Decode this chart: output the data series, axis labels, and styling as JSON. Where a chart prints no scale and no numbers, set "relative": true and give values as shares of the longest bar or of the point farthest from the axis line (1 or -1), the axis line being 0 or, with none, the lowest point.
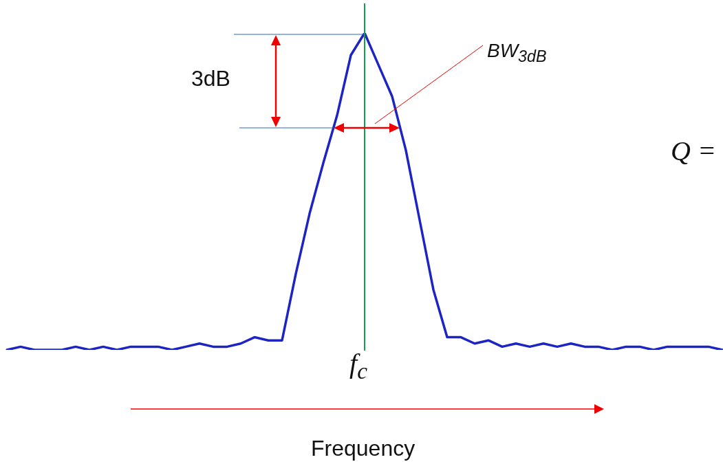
{
  "chart_data": {
    "type": "line",
    "relative": true,
    "xlabel": "Frequency",
    "marker": "none",
    "line_style": "solid",
    "legend": false,
    "grid": false,
    "categories": [
      null,
      null,
      null,
      null,
      null,
      null,
      null,
      null,
      null,
      null,
      null,
      null,
      null,
      null,
      null,
      null,
      null,
      null,
      null,
      null,
      null,
      null,
      null,
      null,
      null,
      null,
      null,
      null,
      null,
      null,
      null,
      null,
      null,
      null,
      null,
      null,
      null,
      null,
      null,
      null,
      null,
      null,
      null,
      null,
      null,
      null,
      null,
      null,
      null,
      null,
      null,
      null,
      null
    ],
    "series": [
      {
        "color": "#1c24c4",
        "values": [
          0.0,
          0.01,
          0.0,
          0.0,
          0.0,
          0.01,
          0.0,
          0.01,
          0,
          0.01,
          0.01,
          0.01,
          0.0,
          0.01,
          0.02,
          0.01,
          0.01,
          0.02,
          0.04,
          0.03,
          0.03,
          0.24,
          0.43,
          0.59,
          0.74,
          0.93,
          1,
          0.9,
          0.8,
          0.63,
          0.41,
          0.19,
          0.04,
          0.04,
          0.02,
          0.03,
          0.01,
          0.02,
          0.01,
          0.02,
          0.01,
          0.02,
          0.01,
          0.01,
          0.0,
          0.01,
          0.01,
          0.0,
          0.01,
          0.01,
          0.01,
          0.01,
          0.0
        ]
      }
    ],
    "annotations": [
      "3dB",
      "BW$_{3dB}$",
      "f$_{c}$",
      "Q ="
    ]
  }
}
